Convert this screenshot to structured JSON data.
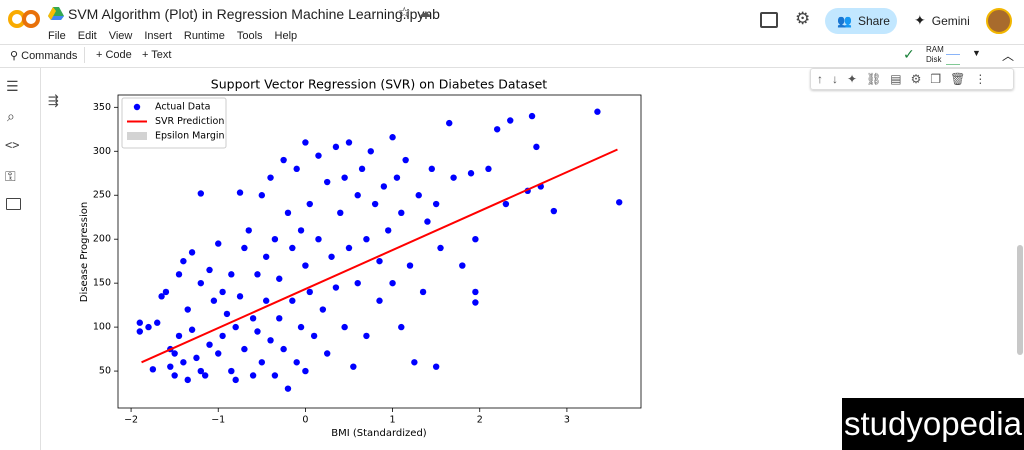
{
  "header": {
    "title": "SVM Algorithm (Plot) in Regression Machine Learning.ipynb",
    "menu": [
      "File",
      "Edit",
      "View",
      "Insert",
      "Runtime",
      "Tools",
      "Help"
    ],
    "share": "Share",
    "gemini": "Gemini"
  },
  "toolbar": {
    "commands": "Commands",
    "code": "Code",
    "text": "Text",
    "ram": "RAM",
    "disk": "Disk"
  },
  "watermark": "studyopedia",
  "chart_data": {
    "type": "scatter",
    "title": "Support Vector Regression (SVR) on Diabetes Dataset",
    "x_label": "BMI (Standardized)",
    "y_label": "Disease Progression",
    "xlim": [
      -2.15,
      3.85
    ],
    "ylim": [
      8,
      364
    ],
    "xticks": [
      {
        "value": -2,
        "label": "−2"
      },
      {
        "value": -1,
        "label": "−1"
      },
      0,
      1,
      2,
      3
    ],
    "yticks": [
      50,
      100,
      150,
      200,
      250,
      300,
      350
    ],
    "grid": false,
    "legend": "upper left",
    "series": [
      {
        "name": "Actual Data",
        "type": "scatter",
        "color": "#0000ff",
        "x": [
          -1.9,
          -1.9,
          -1.8,
          -1.75,
          -1.7,
          -1.65,
          -1.6,
          -1.55,
          -1.55,
          -1.5,
          -1.5,
          -1.45,
          -1.45,
          -1.4,
          -1.4,
          -1.35,
          -1.35,
          -1.3,
          -1.3,
          -1.25,
          -1.2,
          -1.2,
          -1.2,
          -1.15,
          -1.1,
          -1.1,
          -1.05,
          -1.0,
          -1.0,
          -0.95,
          -0.95,
          -0.9,
          -0.85,
          -0.85,
          -0.8,
          -0.8,
          -0.75,
          -0.75,
          -0.7,
          -0.7,
          -0.65,
          -0.6,
          -0.6,
          -0.55,
          -0.55,
          -0.5,
          -0.5,
          -0.45,
          -0.45,
          -0.4,
          -0.4,
          -0.35,
          -0.35,
          -0.3,
          -0.3,
          -0.25,
          -0.25,
          -0.2,
          -0.2,
          -0.15,
          -0.15,
          -0.1,
          -0.1,
          -0.05,
          -0.05,
          0.0,
          0.0,
          0.0,
          0.05,
          0.05,
          0.1,
          0.15,
          0.15,
          0.2,
          0.25,
          0.25,
          0.3,
          0.35,
          0.35,
          0.4,
          0.45,
          0.45,
          0.5,
          0.5,
          0.55,
          0.6,
          0.6,
          0.65,
          0.7,
          0.7,
          0.75,
          0.8,
          0.85,
          0.85,
          0.9,
          0.95,
          1.0,
          1.0,
          1.05,
          1.1,
          1.1,
          1.15,
          1.2,
          1.25,
          1.3,
          1.35,
          1.4,
          1.45,
          1.5,
          1.5,
          1.55,
          1.65,
          1.7,
          1.8,
          1.9,
          1.95,
          1.95,
          1.95,
          2.1,
          2.2,
          2.3,
          2.35,
          2.55,
          2.6,
          2.65,
          2.7,
          2.85,
          3.35,
          3.6
        ],
        "values": [
          95,
          105,
          100,
          52,
          105,
          135,
          140,
          75,
          55,
          70,
          45,
          160,
          90,
          175,
          60,
          40,
          120,
          97,
          185,
          65,
          252,
          150,
          50,
          45,
          80,
          165,
          130,
          195,
          70,
          90,
          140,
          115,
          160,
          50,
          40,
          100,
          253,
          135,
          190,
          75,
          210,
          45,
          110,
          160,
          95,
          250,
          60,
          130,
          180,
          270,
          85,
          200,
          45,
          155,
          110,
          290,
          75,
          230,
          30,
          190,
          130,
          280,
          60,
          210,
          100,
          310,
          170,
          50,
          140,
          240,
          90,
          200,
          295,
          120,
          265,
          70,
          180,
          305,
          145,
          230,
          100,
          270,
          190,
          310,
          55,
          250,
          150,
          280,
          200,
          90,
          300,
          240,
          130,
          175,
          260,
          210,
          316,
          150,
          270,
          100,
          230,
          290,
          170,
          60,
          250,
          140,
          220,
          280,
          55,
          240,
          190,
          332,
          270,
          170,
          275,
          200,
          140,
          128,
          280,
          325,
          240,
          335,
          255,
          340,
          305,
          260,
          232,
          345,
          242
        ]
      },
      {
        "name": "SVR Prediction",
        "type": "line",
        "color": "#ff0000",
        "x": [
          -1.88,
          3.58
        ],
        "values": [
          60,
          302
        ]
      },
      {
        "name": "Epsilon Margin",
        "type": "band",
        "color": "#d3d3d3",
        "x": [],
        "values": []
      }
    ]
  }
}
